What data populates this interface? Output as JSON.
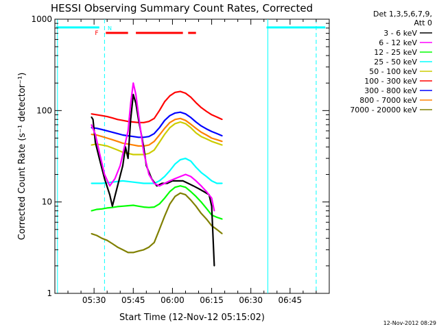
{
  "chart_data": {
    "type": "line",
    "title": "HESSI Observing Summary Count Rates, Corrected",
    "ylabel": "Corrected Count Rate (s⁻¹ detector⁻¹)",
    "xlabel": "Start Time (12-Nov-12 05:15:02)",
    "yscale": "log",
    "ylim": [
      1,
      1000
    ],
    "xlim_minutes": [
      0,
      105
    ],
    "x_ticks": [
      "05:30",
      "05:45",
      "06:00",
      "06:15",
      "06:30",
      "06:45"
    ],
    "y_ticks": [
      "1",
      "10",
      "100",
      "1000"
    ],
    "grid": false,
    "legend_position": "outside-right",
    "legend_header": [
      "Det 1,3,5,6,7,9,",
      "Att 0"
    ],
    "footer_date": "12-Nov-2012 08:29",
    "flags": [
      {
        "label": "F",
        "color": "#ff0000"
      },
      {
        "label": "N",
        "color": "#00ffff"
      }
    ],
    "series": [
      {
        "name": "3 - 6 keV",
        "color": "#000000",
        "values": [
          [
            14,
            85
          ],
          [
            14.6,
            80
          ],
          [
            15.5,
            45
          ],
          [
            17,
            30
          ],
          [
            19,
            18
          ],
          [
            21,
            12
          ],
          [
            22,
            9
          ],
          [
            24,
            15
          ],
          [
            26,
            25
          ],
          [
            27,
            40
          ],
          [
            28,
            30
          ],
          [
            29,
            80
          ],
          [
            30,
            150
          ],
          [
            31,
            120
          ],
          [
            32,
            80
          ],
          [
            34,
            40
          ],
          [
            35,
            25
          ],
          [
            37,
            18
          ],
          [
            39,
            15
          ],
          [
            41,
            16
          ],
          [
            43,
            16
          ],
          [
            45,
            17
          ],
          [
            47,
            17
          ],
          [
            49,
            17
          ],
          [
            51,
            16
          ],
          [
            53,
            15
          ],
          [
            55,
            14
          ],
          [
            57,
            13
          ],
          [
            59,
            12
          ],
          [
            60,
            9
          ],
          [
            61,
            2
          ]
        ]
      },
      {
        "name": "6 - 12 keV",
        "color": "#ff00ff",
        "values": [
          [
            14,
            70
          ],
          [
            15.5,
            55
          ],
          [
            17,
            35
          ],
          [
            19,
            20
          ],
          [
            21,
            15
          ],
          [
            23,
            18
          ],
          [
            25,
            25
          ],
          [
            27,
            45
          ],
          [
            28,
            60
          ],
          [
            29,
            120
          ],
          [
            30,
            200
          ],
          [
            31,
            150
          ],
          [
            32,
            90
          ],
          [
            34,
            35
          ],
          [
            36,
            20
          ],
          [
            38,
            16
          ],
          [
            40,
            15
          ],
          [
            42,
            16
          ],
          [
            44,
            17
          ],
          [
            46,
            18
          ],
          [
            48,
            19
          ],
          [
            50,
            20
          ],
          [
            52,
            19
          ],
          [
            54,
            17
          ],
          [
            56,
            15
          ],
          [
            58,
            13
          ],
          [
            60,
            11
          ],
          [
            61,
            8
          ]
        ]
      },
      {
        "name": "12 - 25 keV",
        "color": "#00ff00",
        "values": [
          [
            14,
            8
          ],
          [
            16,
            8.3
          ],
          [
            18,
            8.4
          ],
          [
            20,
            8.6
          ],
          [
            22,
            8.7
          ],
          [
            24,
            8.9
          ],
          [
            26,
            9
          ],
          [
            28,
            9.1
          ],
          [
            30,
            9.2
          ],
          [
            32,
            9
          ],
          [
            34,
            8.8
          ],
          [
            36,
            8.7
          ],
          [
            38,
            8.8
          ],
          [
            40,
            9.5
          ],
          [
            42,
            11
          ],
          [
            44,
            13
          ],
          [
            46,
            14.5
          ],
          [
            48,
            15
          ],
          [
            50,
            14.5
          ],
          [
            52,
            13
          ],
          [
            54,
            11.5
          ],
          [
            56,
            10
          ],
          [
            58,
            8.5
          ],
          [
            60,
            7.2
          ],
          [
            62,
            6.8
          ],
          [
            64,
            6.5
          ]
        ]
      },
      {
        "name": "25 - 50 keV",
        "color": "#00ffff",
        "values": [
          [
            14,
            16
          ],
          [
            18,
            16
          ],
          [
            22,
            16.5
          ],
          [
            26,
            17
          ],
          [
            30,
            16.5
          ],
          [
            34,
            16
          ],
          [
            38,
            16
          ],
          [
            40,
            17
          ],
          [
            42,
            19
          ],
          [
            44,
            22
          ],
          [
            46,
            26
          ],
          [
            48,
            29
          ],
          [
            50,
            30
          ],
          [
            52,
            28
          ],
          [
            54,
            24
          ],
          [
            56,
            21
          ],
          [
            58,
            19
          ],
          [
            60,
            17
          ],
          [
            62,
            16
          ],
          [
            64,
            16
          ]
        ]
      },
      {
        "name": "50 - 100 keV",
        "color": "#cccc00",
        "values": [
          [
            14,
            42
          ],
          [
            16,
            43
          ],
          [
            18,
            42
          ],
          [
            20,
            41
          ],
          [
            22,
            39
          ],
          [
            24,
            37
          ],
          [
            26,
            35
          ],
          [
            28,
            34
          ],
          [
            30,
            33
          ],
          [
            32,
            33
          ],
          [
            34,
            33
          ],
          [
            36,
            34
          ],
          [
            38,
            37
          ],
          [
            40,
            45
          ],
          [
            42,
            55
          ],
          [
            44,
            65
          ],
          [
            46,
            72
          ],
          [
            48,
            75
          ],
          [
            50,
            72
          ],
          [
            52,
            65
          ],
          [
            54,
            57
          ],
          [
            56,
            52
          ],
          [
            58,
            49
          ],
          [
            60,
            46
          ],
          [
            62,
            44
          ],
          [
            64,
            42
          ]
        ]
      },
      {
        "name": "100 - 300 keV",
        "color": "#ff0000",
        "values": [
          [
            14,
            92
          ],
          [
            16,
            90
          ],
          [
            18,
            88
          ],
          [
            20,
            86
          ],
          [
            22,
            83
          ],
          [
            24,
            80
          ],
          [
            26,
            78
          ],
          [
            28,
            76
          ],
          [
            30,
            75
          ],
          [
            32,
            74
          ],
          [
            34,
            74
          ],
          [
            36,
            76
          ],
          [
            38,
            82
          ],
          [
            40,
            100
          ],
          [
            42,
            125
          ],
          [
            44,
            145
          ],
          [
            46,
            158
          ],
          [
            48,
            162
          ],
          [
            50,
            155
          ],
          [
            52,
            140
          ],
          [
            54,
            122
          ],
          [
            56,
            108
          ],
          [
            58,
            98
          ],
          [
            60,
            90
          ],
          [
            62,
            85
          ],
          [
            64,
            80
          ]
        ]
      },
      {
        "name": "300 - 800 keV",
        "color": "#0000ff",
        "values": [
          [
            14,
            65
          ],
          [
            16,
            64
          ],
          [
            18,
            62
          ],
          [
            20,
            60
          ],
          [
            22,
            58
          ],
          [
            24,
            56
          ],
          [
            26,
            54
          ],
          [
            28,
            53
          ],
          [
            30,
            52
          ],
          [
            32,
            51
          ],
          [
            34,
            51
          ],
          [
            36,
            52
          ],
          [
            38,
            56
          ],
          [
            40,
            65
          ],
          [
            42,
            78
          ],
          [
            44,
            88
          ],
          [
            46,
            94
          ],
          [
            48,
            96
          ],
          [
            50,
            92
          ],
          [
            52,
            84
          ],
          [
            54,
            75
          ],
          [
            56,
            68
          ],
          [
            58,
            63
          ],
          [
            60,
            59
          ],
          [
            62,
            56
          ],
          [
            64,
            53
          ]
        ]
      },
      {
        "name": "800 - 7000 keV",
        "color": "#ff8000",
        "values": [
          [
            14,
            55
          ],
          [
            16,
            54
          ],
          [
            18,
            52
          ],
          [
            20,
            50
          ],
          [
            22,
            48
          ],
          [
            24,
            46
          ],
          [
            26,
            44
          ],
          [
            28,
            43
          ],
          [
            30,
            42
          ],
          [
            32,
            41
          ],
          [
            34,
            41
          ],
          [
            36,
            42
          ],
          [
            38,
            46
          ],
          [
            40,
            54
          ],
          [
            42,
            64
          ],
          [
            44,
            74
          ],
          [
            46,
            80
          ],
          [
            48,
            82
          ],
          [
            50,
            78
          ],
          [
            52,
            71
          ],
          [
            54,
            64
          ],
          [
            56,
            58
          ],
          [
            58,
            54
          ],
          [
            60,
            50
          ],
          [
            62,
            48
          ],
          [
            64,
            46
          ]
        ]
      },
      {
        "name": "7000 - 20000 keV",
        "color": "#808000",
        "values": [
          [
            14,
            4.5
          ],
          [
            16,
            4.3
          ],
          [
            18,
            4
          ],
          [
            20,
            3.8
          ],
          [
            22,
            3.5
          ],
          [
            24,
            3.2
          ],
          [
            26,
            3
          ],
          [
            28,
            2.8
          ],
          [
            30,
            2.8
          ],
          [
            32,
            2.9
          ],
          [
            34,
            3
          ],
          [
            36,
            3.2
          ],
          [
            38,
            3.6
          ],
          [
            40,
            5
          ],
          [
            42,
            7
          ],
          [
            44,
            9.5
          ],
          [
            46,
            11.5
          ],
          [
            48,
            12.5
          ],
          [
            50,
            12
          ],
          [
            52,
            10.5
          ],
          [
            54,
            9
          ],
          [
            56,
            7.5
          ],
          [
            58,
            6.5
          ],
          [
            60,
            5.5
          ],
          [
            62,
            5
          ],
          [
            64,
            4.5
          ]
        ]
      }
    ]
  }
}
